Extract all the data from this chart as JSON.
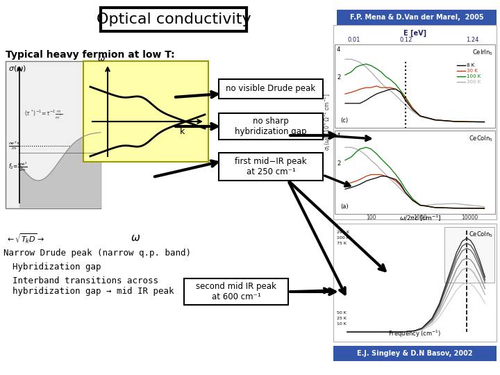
{
  "title": "Optical conductivity",
  "bg_color": "#ffffff",
  "ref_top": "F.P. Mena & D.Van der Marel,  2005",
  "ref_top_bg": "#3355aa",
  "ref_top_color": "#ffffff",
  "ref_bottom": "E.J. Singley & D.N Basov, 2002",
  "ref_bottom_bg": "#3355aa",
  "ref_bottom_color": "#ffffff",
  "subtitle": "Typical heavy fermion at low T:",
  "ann1": "no visible Drude peak",
  "ann2": "no sharp\nhybridization gap",
  "ann3": "first mid−IR peak\nat 250 cm⁻¹",
  "ann4": "second mid IR peak\nat 600 cm⁻¹",
  "bullet1": "Narrow Drude peak (narrow q.p. band)",
  "bullet2": "Hybridization gap",
  "bullet3": "Interband transitions across\nhybridization gap → mid IR peak",
  "sketch_bg": "#ffffaa",
  "sketch_border": "#888888"
}
